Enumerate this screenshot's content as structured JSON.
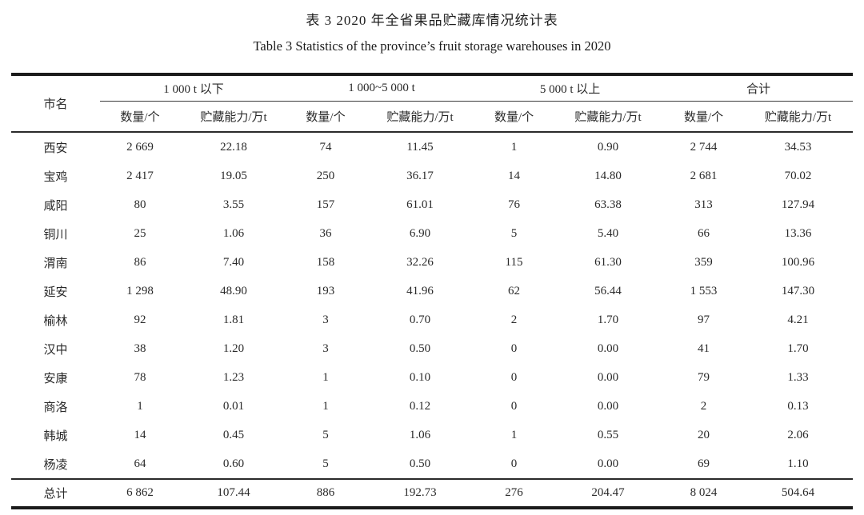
{
  "caption": {
    "zh": "表 3  2020 年全省果品贮藏库情况统计表",
    "en": "Table 3  Statistics of the province’s fruit storage warehouses in 2020"
  },
  "table": {
    "row_header_label": "市名",
    "groups": [
      {
        "label": "1 000 t 以下"
      },
      {
        "label": "1 000~5 000 t"
      },
      {
        "label": "5 000 t 以上"
      },
      {
        "label": "合计"
      }
    ],
    "subheaders": [
      "数量/个",
      "贮藏能力/万t"
    ],
    "rows": [
      {
        "city": "西安",
        "values": [
          "2 669",
          "22.18",
          "74",
          "11.45",
          "1",
          "0.90",
          "2 744",
          "34.53"
        ]
      },
      {
        "city": "宝鸡",
        "values": [
          "2 417",
          "19.05",
          "250",
          "36.17",
          "14",
          "14.80",
          "2 681",
          "70.02"
        ]
      },
      {
        "city": "咸阳",
        "values": [
          "80",
          "3.55",
          "157",
          "61.01",
          "76",
          "63.38",
          "313",
          "127.94"
        ]
      },
      {
        "city": "铜川",
        "values": [
          "25",
          "1.06",
          "36",
          "6.90",
          "5",
          "5.40",
          "66",
          "13.36"
        ]
      },
      {
        "city": "渭南",
        "values": [
          "86",
          "7.40",
          "158",
          "32.26",
          "115",
          "61.30",
          "359",
          "100.96"
        ]
      },
      {
        "city": "延安",
        "values": [
          "1 298",
          "48.90",
          "193",
          "41.96",
          "62",
          "56.44",
          "1 553",
          "147.30"
        ]
      },
      {
        "city": "榆林",
        "values": [
          "92",
          "1.81",
          "3",
          "0.70",
          "2",
          "1.70",
          "97",
          "4.21"
        ]
      },
      {
        "city": "汉中",
        "values": [
          "38",
          "1.20",
          "3",
          "0.50",
          "0",
          "0.00",
          "41",
          "1.70"
        ]
      },
      {
        "city": "安康",
        "values": [
          "78",
          "1.23",
          "1",
          "0.10",
          "0",
          "0.00",
          "79",
          "1.33"
        ]
      },
      {
        "city": "商洛",
        "values": [
          "1",
          "0.01",
          "1",
          "0.12",
          "0",
          "0.00",
          "2",
          "0.13"
        ]
      },
      {
        "city": "韩城",
        "values": [
          "14",
          "0.45",
          "5",
          "1.06",
          "1",
          "0.55",
          "20",
          "2.06"
        ]
      },
      {
        "city": "杨凌",
        "values": [
          "64",
          "0.60",
          "5",
          "0.50",
          "0",
          "0.00",
          "69",
          "1.10"
        ]
      }
    ],
    "total": {
      "city": "总计",
      "values": [
        "6 862",
        "107.44",
        "886",
        "192.73",
        "276",
        "204.47",
        "8 024",
        "504.64"
      ]
    }
  }
}
